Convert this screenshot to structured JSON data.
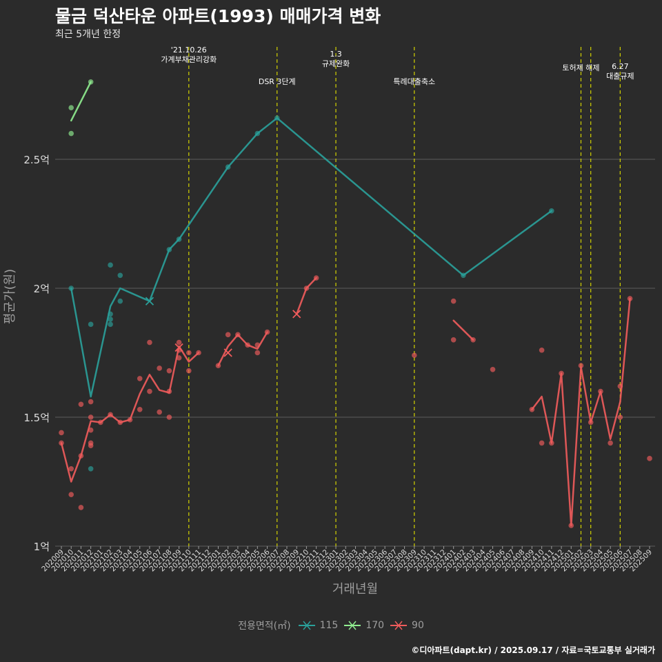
{
  "title": "물금 덕산타운 아파트(1993) 매매가격 변화",
  "subtitle": "최근 5개년 한정",
  "caption": "©디아파트(dapt.kr) / 2025.09.17 / 자료=국토교통부 실거래가",
  "colors": {
    "background": "#2b2b2b",
    "s115": "#2aa19b",
    "s170": "#90ee90",
    "s90": "#f25c5c",
    "event_line": "#d4d400",
    "grid": "#5e5e5e"
  },
  "legend": {
    "title": "전용면적(㎡)",
    "items": [
      "115",
      "170",
      "90"
    ]
  },
  "chart_data": {
    "type": "line",
    "xlabel": "거래년월",
    "ylabel": "평균가(원)",
    "ylim": [
      1.0,
      2.85
    ],
    "yticks": [
      1.0,
      1.5,
      2.0,
      2.5
    ],
    "ytick_labels": [
      "1억",
      "1.5억",
      "2억",
      "2.5억"
    ],
    "grid": true,
    "categories": [
      "202009",
      "202010",
      "202011",
      "202012",
      "202101",
      "202102",
      "202103",
      "202104",
      "202105",
      "202106",
      "202107",
      "202108",
      "202109",
      "202110",
      "202111",
      "202112",
      "202201",
      "202202",
      "202203",
      "202204",
      "202205",
      "202206",
      "202207",
      "202208",
      "202209",
      "202210",
      "202211",
      "202212",
      "202301",
      "202302",
      "202303",
      "202304",
      "202305",
      "202306",
      "202307",
      "202308",
      "202309",
      "202310",
      "202311",
      "202312",
      "202401",
      "202402",
      "202403",
      "202404",
      "202405",
      "202406",
      "202407",
      "202408",
      "202409",
      "202410",
      "202411",
      "202412",
      "202501",
      "202502",
      "202503",
      "202504",
      "202505",
      "202506",
      "202507",
      "202508",
      "202509"
    ],
    "events": [
      {
        "x": "202110",
        "label": "'21.10.26\n가계부채관리강화"
      },
      {
        "x": "202207",
        "label": "DSR 3단계"
      },
      {
        "x": "202301",
        "label": "1.3\n규제완화"
      },
      {
        "x": "202309",
        "label": "특례대출축소"
      },
      {
        "x": "202502",
        "label": "토허제 해제"
      },
      {
        "x": "202503",
        "label": ""
      },
      {
        "x": "202506",
        "label": "6.27\n대출규제"
      }
    ],
    "series": [
      {
        "name": "115",
        "color": "#2aa19b",
        "line": [
          [
            "202010",
            2.0
          ],
          [
            "202012",
            1.58
          ],
          [
            "202102",
            1.93
          ],
          [
            "202103",
            2.0
          ],
          [
            "202106",
            1.95
          ],
          [
            "202108",
            2.15
          ],
          [
            "202109",
            2.19
          ],
          [
            "202202",
            2.47
          ],
          [
            "202205",
            2.6
          ],
          [
            "202207",
            2.66
          ],
          [
            "202402",
            2.05
          ],
          [
            "202411",
            2.3
          ]
        ],
        "points": [
          [
            "202010",
            2.0
          ],
          [
            "202012",
            1.86
          ],
          [
            "202012",
            1.3
          ],
          [
            "202102",
            2.09
          ],
          [
            "202102",
            1.9
          ],
          [
            "202102",
            1.88
          ],
          [
            "202102",
            1.86
          ],
          [
            "202103",
            2.05
          ],
          [
            "202103",
            1.95
          ],
          [
            "202108",
            2.15
          ],
          [
            "202109",
            2.19
          ],
          [
            "202202",
            2.47
          ],
          [
            "202205",
            2.6
          ],
          [
            "202207",
            2.66
          ],
          [
            "202402",
            2.05
          ],
          [
            "202411",
            2.3
          ]
        ],
        "crosses": [
          [
            "202106",
            1.95
          ]
        ]
      },
      {
        "name": "170",
        "color": "#90ee90",
        "line": [
          [
            "202010",
            2.65
          ],
          [
            "202012",
            2.8
          ]
        ],
        "points": [
          [
            "202010",
            2.7
          ],
          [
            "202010",
            2.6
          ],
          [
            "202012",
            2.8
          ]
        ],
        "crosses": []
      },
      {
        "name": "90",
        "color": "#f25c5c",
        "line": [
          [
            [
              "202009",
              1.4
            ],
            [
              "202010",
              1.25
            ],
            [
              "202011",
              1.35
            ],
            [
              "202012",
              1.485
            ],
            [
              "202101",
              1.48
            ],
            [
              "202102",
              1.51
            ],
            [
              "202103",
              1.48
            ],
            [
              "202104",
              1.49
            ],
            [
              "202105",
              1.59
            ],
            [
              "202106",
              1.665
            ],
            [
              "202107",
              1.605
            ],
            [
              "202108",
              1.595
            ],
            [
              "202109",
              1.775
            ],
            [
              "202110",
              1.715
            ],
            [
              "202111",
              1.75
            ]
          ],
          [
            [
              "202201",
              1.7
            ],
            [
              "202202",
              1.775
            ],
            [
              "202203",
              1.82
            ],
            [
              "202204",
              1.78
            ],
            [
              "202205",
              1.765
            ],
            [
              "202206",
              1.83
            ]
          ],
          [
            [
              "202209",
              1.9
            ],
            [
              "202210",
              2.0
            ],
            [
              "202211",
              2.04
            ]
          ],
          [
            [
              "202401",
              1.875
            ],
            [
              "202403",
              1.8
            ]
          ],
          [
            [
              "202409",
              1.53
            ],
            [
              "202410",
              1.58
            ],
            [
              "202411",
              1.4
            ],
            [
              "202412",
              1.67
            ],
            [
              "202501",
              1.08
            ],
            [
              "202502",
              1.695
            ],
            [
              "202503",
              1.48
            ],
            [
              "202504",
              1.6
            ],
            [
              "202505",
              1.415
            ],
            [
              "202506",
              1.56
            ],
            [
              "202507",
              1.96
            ]
          ]
        ],
        "points": [
          [
            "202009",
            1.44
          ],
          [
            "202009",
            1.4
          ],
          [
            "202010",
            1.3
          ],
          [
            "202010",
            1.2
          ],
          [
            "202011",
            1.55
          ],
          [
            "202011",
            1.15
          ],
          [
            "202011",
            1.35
          ],
          [
            "202012",
            1.56
          ],
          [
            "202012",
            1.5
          ],
          [
            "202012",
            1.45
          ],
          [
            "202012",
            1.4
          ],
          [
            "202012",
            1.39
          ],
          [
            "202101",
            1.48
          ],
          [
            "202102",
            1.51
          ],
          [
            "202103",
            1.48
          ],
          [
            "202104",
            1.49
          ],
          [
            "202105",
            1.65
          ],
          [
            "202105",
            1.53
          ],
          [
            "202106",
            1.79
          ],
          [
            "202106",
            1.6
          ],
          [
            "202107",
            1.69
          ],
          [
            "202107",
            1.52
          ],
          [
            "202108",
            1.68
          ],
          [
            "202108",
            1.6
          ],
          [
            "202108",
            1.5
          ],
          [
            "202109",
            1.79
          ],
          [
            "202109",
            1.76
          ],
          [
            "202109",
            1.73
          ],
          [
            "202110",
            1.75
          ],
          [
            "202110",
            1.68
          ],
          [
            "202111",
            1.75
          ],
          [
            "202201",
            1.7
          ],
          [
            "202202",
            1.82
          ],
          [
            "202203",
            1.82
          ],
          [
            "202204",
            1.78
          ],
          [
            "202205",
            1.78
          ],
          [
            "202205",
            1.75
          ],
          [
            "202206",
            1.83
          ],
          [
            "202210",
            2.0
          ],
          [
            "202211",
            2.04
          ],
          [
            "202309",
            1.74
          ],
          [
            "202401",
            1.95
          ],
          [
            "202401",
            1.8
          ],
          [
            "202403",
            1.8
          ],
          [
            "202405",
            1.685
          ],
          [
            "202409",
            1.53
          ],
          [
            "202410",
            1.76
          ],
          [
            "202410",
            1.4
          ],
          [
            "202411",
            1.4
          ],
          [
            "202412",
            1.67
          ],
          [
            "202501",
            1.08
          ],
          [
            "202502",
            1.7
          ],
          [
            "202503",
            1.48
          ],
          [
            "202504",
            1.6
          ],
          [
            "202505",
            1.4
          ],
          [
            "202506",
            1.5
          ],
          [
            "202506",
            1.62
          ],
          [
            "202507",
            1.96
          ],
          [
            "202509",
            1.34
          ]
        ],
        "crosses": [
          [
            "202109",
            1.77
          ],
          [
            "202202",
            1.75
          ],
          [
            "202209",
            1.9
          ]
        ]
      }
    ]
  }
}
